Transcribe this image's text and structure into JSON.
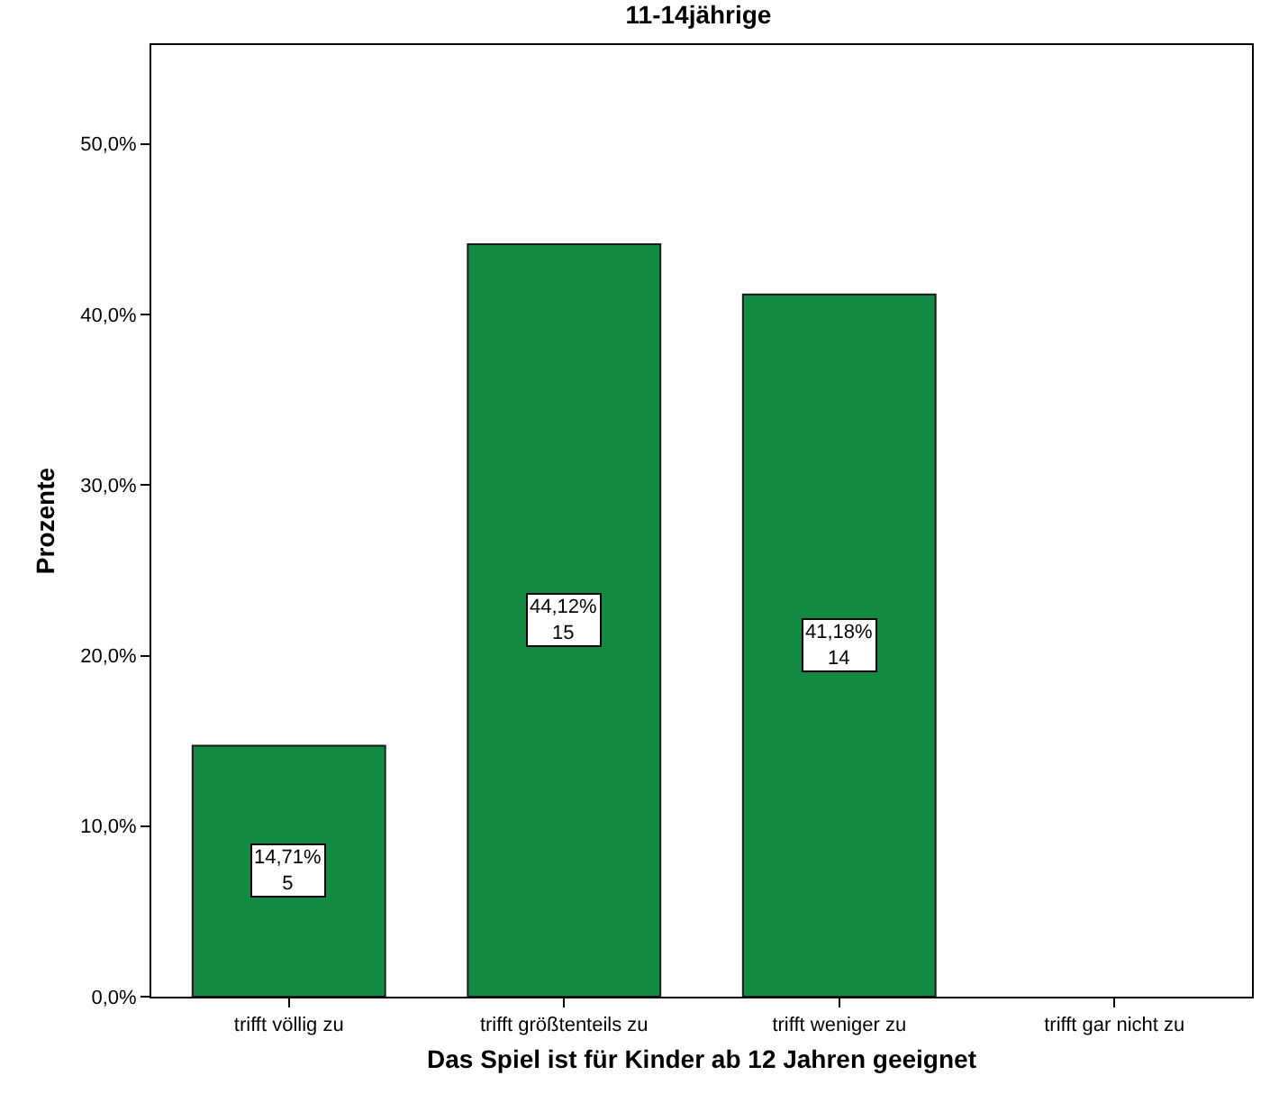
{
  "chart_data": {
    "type": "bar",
    "title": "11-14jährige",
    "xlabel": "Das Spiel ist für Kinder ab 12 Jahren geeignet",
    "ylabel": "Prozente",
    "categories": [
      "trifft völlig zu",
      "trifft größtenteils zu",
      "trifft weniger zu",
      "trifft gar nicht zu"
    ],
    "values": [
      14.71,
      44.12,
      41.18,
      0
    ],
    "value_labels": [
      "14,71%\n5",
      "44,12%\n15",
      "41,18%\n14",
      null
    ],
    "color": "#138a43",
    "ylim": [
      0,
      55.8
    ],
    "yticks": [
      {
        "value": 0,
        "label": "0,0%"
      },
      {
        "value": 10,
        "label": "10,0%"
      },
      {
        "value": 20,
        "label": "20,0%"
      },
      {
        "value": 30,
        "label": "30,0%"
      },
      {
        "value": 40,
        "label": "40,0%"
      },
      {
        "value": 50,
        "label": "50,0%"
      }
    ],
    "grid": false
  }
}
